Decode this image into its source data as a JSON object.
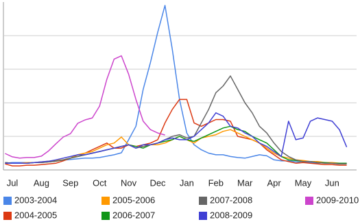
{
  "chart_data": {
    "type": "line",
    "categories": [
      null,
      "Jul",
      null,
      null,
      null,
      "Aug",
      null,
      null,
      null,
      "Sep",
      null,
      null,
      null,
      "Oct",
      null,
      null,
      null,
      "Nov",
      null,
      null,
      null,
      "Dec",
      null,
      null,
      null,
      "Jan",
      null,
      null,
      null,
      "Feb",
      null,
      null,
      null,
      "Mar",
      null,
      null,
      null,
      "Apr",
      null,
      null,
      null,
      "May",
      null,
      null,
      null,
      "Jun",
      null,
      null,
      null
    ],
    "ylim": [
      0,
      5
    ],
    "yticks": [
      1,
      2,
      3,
      4
    ],
    "grid": true,
    "series": [
      {
        "name": "2003-2004",
        "color": "#4a86e8",
        "values": [
          0.2,
          0.22,
          0.22,
          0.22,
          0.22,
          0.24,
          0.24,
          0.27,
          0.29,
          0.31,
          0.33,
          0.35,
          0.35,
          0.37,
          0.41,
          0.45,
          0.51,
          0.9,
          1.3,
          2.4,
          3.2,
          4.1,
          4.9,
          3.6,
          2.1,
          1.1,
          0.75,
          0.6,
          0.5,
          0.45,
          0.45,
          0.4,
          0.37,
          0.35,
          0.4,
          0.45,
          0.42,
          0.3,
          0.27,
          0.27,
          0.24,
          0.22,
          0.22,
          0.2,
          0.22,
          0.2,
          0.18,
          0.2,
          null
        ]
      },
      {
        "name": "2004-2005",
        "color": "#dc3912",
        "values": [
          0.18,
          0.12,
          0.12,
          0.14,
          0.14,
          0.16,
          0.18,
          0.2,
          0.27,
          0.35,
          0.45,
          0.5,
          0.6,
          0.7,
          0.8,
          0.65,
          0.65,
          0.75,
          0.7,
          0.75,
          0.8,
          0.9,
          1.4,
          1.8,
          2.1,
          2.1,
          1.4,
          1.3,
          1.4,
          1.5,
          1.5,
          1.45,
          1.0,
          0.95,
          0.9,
          0.8,
          0.6,
          0.45,
          0.3,
          0.25,
          0.2,
          0.22,
          0.2,
          0.18,
          0.16,
          0.16,
          0.14,
          0.14,
          null
        ]
      },
      {
        "name": "2005-2006",
        "color": "#ff9900",
        "values": [
          0.2,
          0.2,
          0.2,
          0.22,
          0.22,
          0.24,
          0.26,
          0.28,
          0.3,
          0.35,
          0.45,
          0.5,
          0.55,
          0.65,
          0.75,
          0.8,
          0.98,
          0.75,
          0.7,
          0.7,
          0.75,
          0.75,
          0.8,
          0.9,
          1.0,
          0.9,
          0.8,
          0.95,
          1.0,
          1.05,
          1.15,
          1.2,
          1.1,
          1.0,
          0.9,
          0.8,
          0.65,
          0.5,
          0.4,
          0.35,
          0.3,
          0.28,
          0.25,
          0.25,
          0.22,
          0.22,
          0.2,
          0.2,
          null
        ]
      },
      {
        "name": "2006-2007",
        "color": "#109618",
        "values": [
          0.22,
          0.2,
          0.2,
          0.2,
          0.22,
          0.22,
          0.24,
          0.26,
          0.3,
          0.35,
          0.4,
          0.45,
          0.5,
          0.55,
          0.6,
          0.65,
          0.7,
          0.75,
          0.7,
          0.65,
          0.75,
          0.8,
          0.85,
          0.9,
          1.0,
          0.9,
          0.85,
          0.95,
          1.05,
          1.15,
          1.25,
          1.3,
          1.2,
          1.15,
          1.0,
          0.9,
          0.8,
          0.6,
          0.4,
          0.3,
          0.28,
          0.25,
          0.25,
          0.22,
          0.22,
          0.2,
          0.2,
          0.2,
          null
        ]
      },
      {
        "name": "2007-2008",
        "color": "#666666",
        "values": [
          0.22,
          0.2,
          0.2,
          0.2,
          0.22,
          0.22,
          0.24,
          0.26,
          0.3,
          0.35,
          0.4,
          0.45,
          0.5,
          0.55,
          0.6,
          0.65,
          0.7,
          0.75,
          0.65,
          0.7,
          0.75,
          0.8,
          0.9,
          1.0,
          1.05,
          0.95,
          1.0,
          1.4,
          1.8,
          2.3,
          2.5,
          2.8,
          2.4,
          2.0,
          1.7,
          1.3,
          1.1,
          0.8,
          0.55,
          0.4,
          0.3,
          0.25,
          0.25,
          0.22,
          0.2,
          0.2,
          0.18,
          0.18,
          null
        ]
      },
      {
        "name": "2008-2009",
        "color": "#3f3fd4",
        "values": [
          0.2,
          0.2,
          0.2,
          0.2,
          0.22,
          0.24,
          0.26,
          0.3,
          0.35,
          0.4,
          0.45,
          0.45,
          0.5,
          0.55,
          0.6,
          0.65,
          0.7,
          0.75,
          0.65,
          0.75,
          0.75,
          0.8,
          0.9,
          0.95,
          0.9,
          0.9,
          1.0,
          1.2,
          1.4,
          1.7,
          1.6,
          1.3,
          1.25,
          1.1,
          1.0,
          0.8,
          0.7,
          0.55,
          0.4,
          1.45,
          0.9,
          0.95,
          1.45,
          1.55,
          1.5,
          1.45,
          1.2,
          0.68,
          null
        ]
      },
      {
        "name": "2009-2010",
        "color": "#cc44cc",
        "values": [
          0.49,
          0.39,
          0.35,
          0.37,
          0.37,
          0.41,
          0.57,
          0.78,
          0.98,
          1.08,
          1.39,
          1.49,
          1.55,
          1.9,
          2.7,
          3.3,
          3.4,
          2.85,
          2.1,
          1.45,
          1.2,
          1.1,
          1.04,
          null,
          null,
          null,
          null,
          null,
          null,
          null,
          null,
          null,
          null,
          null,
          null,
          null,
          null,
          null,
          null,
          null,
          null,
          null,
          null,
          null,
          null,
          null,
          null,
          null,
          null
        ]
      }
    ]
  }
}
